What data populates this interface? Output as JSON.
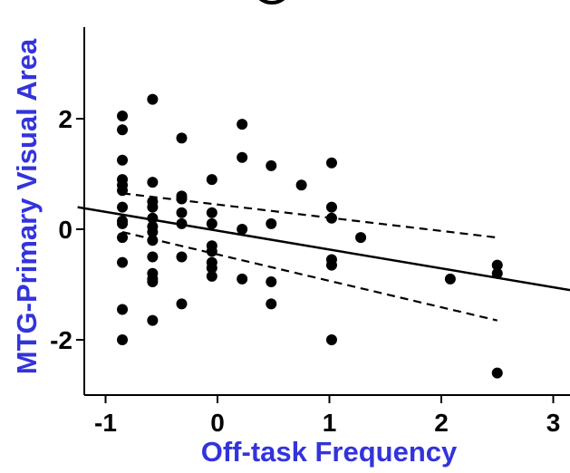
{
  "chart_data": {
    "type": "scatter",
    "xlabel": "Off-task Frequency",
    "ylabel": "MTG-Primary Visual Area",
    "xlim": [
      -1.25,
      3.15
    ],
    "ylim": [
      -3.0,
      3.8
    ],
    "x_ticks": [
      -1,
      0,
      1,
      2,
      3
    ],
    "y_ticks": [
      -2,
      0,
      2
    ],
    "x_tick_labels": [
      "-1",
      "0",
      "1",
      "2",
      "3"
    ],
    "y_tick_labels": [
      "-2",
      "0",
      "2"
    ],
    "grid": false,
    "colors": {
      "points": "#000000",
      "axis_title": "#3333dd",
      "line": "#000000"
    },
    "points": [
      {
        "x": -0.85,
        "y": 2.05
      },
      {
        "x": -0.85,
        "y": 1.8
      },
      {
        "x": -0.85,
        "y": 1.25
      },
      {
        "x": -0.85,
        "y": 0.9
      },
      {
        "x": -0.85,
        "y": 0.8
      },
      {
        "x": -0.85,
        "y": 0.7
      },
      {
        "x": -0.85,
        "y": 0.4
      },
      {
        "x": -0.85,
        "y": 0.15
      },
      {
        "x": -0.85,
        "y": 0.1
      },
      {
        "x": -0.85,
        "y": -0.15
      },
      {
        "x": -0.85,
        "y": -0.6
      },
      {
        "x": -0.85,
        "y": -1.45
      },
      {
        "x": -0.85,
        "y": -2.0
      },
      {
        "x": -0.58,
        "y": 2.35
      },
      {
        "x": -0.58,
        "y": 0.85
      },
      {
        "x": -0.58,
        "y": 0.5
      },
      {
        "x": -0.58,
        "y": 0.4
      },
      {
        "x": -0.58,
        "y": 0.2
      },
      {
        "x": -0.58,
        "y": 0.05
      },
      {
        "x": -0.58,
        "y": -0.05
      },
      {
        "x": -0.58,
        "y": -0.2
      },
      {
        "x": -0.58,
        "y": -0.5
      },
      {
        "x": -0.58,
        "y": -0.8
      },
      {
        "x": -0.58,
        "y": -0.9
      },
      {
        "x": -0.58,
        "y": -0.95
      },
      {
        "x": -0.58,
        "y": -1.65
      },
      {
        "x": -0.32,
        "y": 1.65
      },
      {
        "x": -0.32,
        "y": 0.6
      },
      {
        "x": -0.32,
        "y": 0.55
      },
      {
        "x": -0.32,
        "y": 0.3
      },
      {
        "x": -0.32,
        "y": 0.1
      },
      {
        "x": -0.32,
        "y": -0.5
      },
      {
        "x": -0.32,
        "y": -1.35
      },
      {
        "x": -0.05,
        "y": 0.9
      },
      {
        "x": -0.05,
        "y": 0.3
      },
      {
        "x": -0.05,
        "y": 0.1
      },
      {
        "x": -0.05,
        "y": -0.3
      },
      {
        "x": -0.05,
        "y": -0.4
      },
      {
        "x": -0.05,
        "y": -0.6
      },
      {
        "x": -0.05,
        "y": -0.7
      },
      {
        "x": -0.05,
        "y": -0.85
      },
      {
        "x": 0.22,
        "y": 1.9
      },
      {
        "x": 0.22,
        "y": 1.3
      },
      {
        "x": 0.22,
        "y": 0.0
      },
      {
        "x": 0.22,
        "y": -0.9
      },
      {
        "x": 0.48,
        "y": 1.15
      },
      {
        "x": 0.48,
        "y": 0.1
      },
      {
        "x": 0.48,
        "y": -0.95
      },
      {
        "x": 0.48,
        "y": -1.35
      },
      {
        "x": 0.75,
        "y": 0.8
      },
      {
        "x": 1.02,
        "y": 1.2
      },
      {
        "x": 1.02,
        "y": 0.4
      },
      {
        "x": 1.02,
        "y": 0.2
      },
      {
        "x": 1.02,
        "y": -0.55
      },
      {
        "x": 1.02,
        "y": -0.65
      },
      {
        "x": 1.02,
        "y": -2.0
      },
      {
        "x": 1.28,
        "y": -0.15
      },
      {
        "x": 2.08,
        "y": -0.9
      },
      {
        "x": 2.5,
        "y": -0.65
      },
      {
        "x": 2.5,
        "y": -0.8
      },
      {
        "x": 2.5,
        "y": -2.6
      }
    ],
    "regression_line": {
      "x": [
        -1.25,
        3.15
      ],
      "y": [
        0.4,
        -1.1
      ]
    },
    "confidence_band_upper": {
      "x": [
        -0.85,
        2.5
      ],
      "y": [
        0.65,
        -0.15
      ]
    },
    "confidence_band_lower": {
      "x": [
        -0.85,
        2.5
      ],
      "y": [
        -0.05,
        -1.65
      ]
    }
  }
}
